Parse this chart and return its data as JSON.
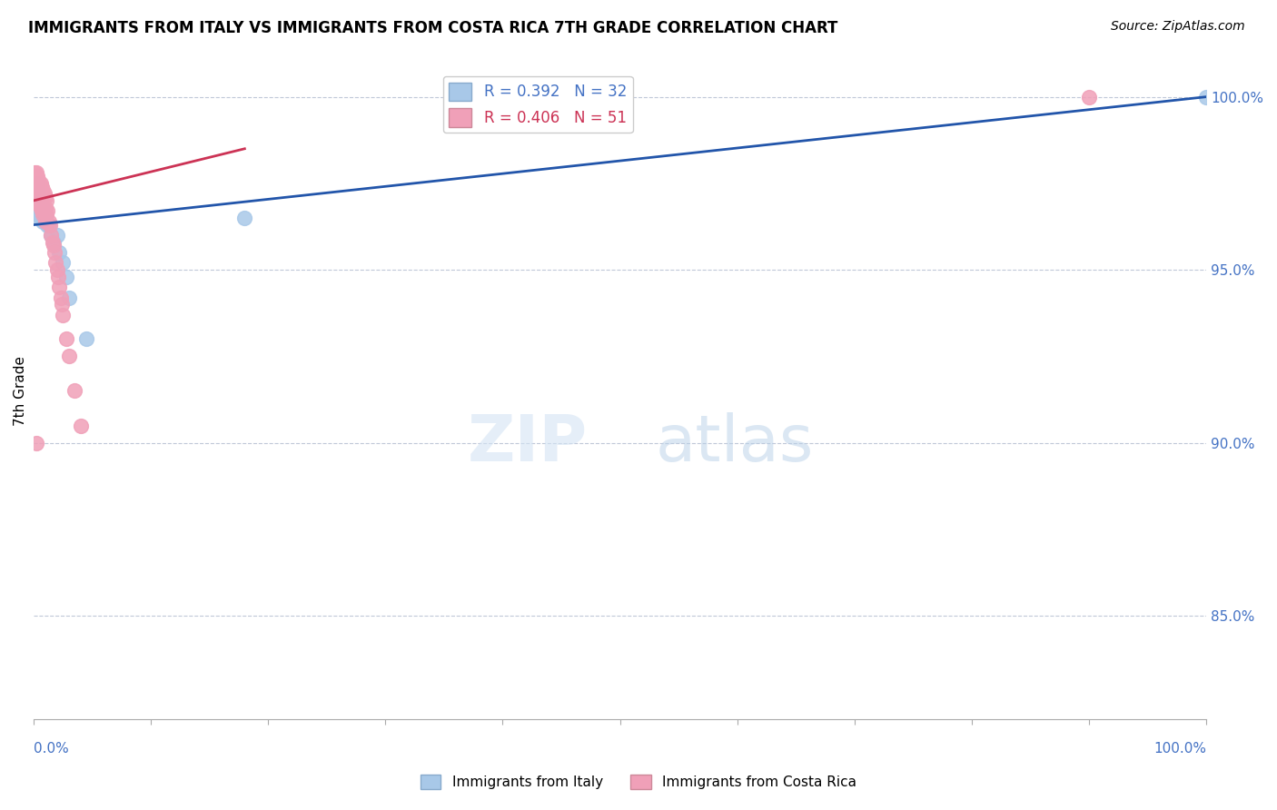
{
  "title": "IMMIGRANTS FROM ITALY VS IMMIGRANTS FROM COSTA RICA 7TH GRADE CORRELATION CHART",
  "source": "Source: ZipAtlas.com",
  "ylabel": "7th Grade",
  "ylabel_right_ticks": [
    "100.0%",
    "95.0%",
    "90.0%",
    "85.0%"
  ],
  "ylabel_right_values": [
    1.0,
    0.95,
    0.9,
    0.85
  ],
  "legend_italy": "R = 0.392   N = 32",
  "legend_costa_rica": "R = 0.406   N = 51",
  "italy_color": "#a8c8e8",
  "costa_rica_color": "#f0a0b8",
  "italy_line_color": "#2255aa",
  "costa_rica_line_color": "#cc3355",
  "xlim": [
    0.0,
    1.0
  ],
  "ylim": [
    0.82,
    1.01
  ],
  "italy_x": [
    0.001,
    0.001,
    0.002,
    0.002,
    0.002,
    0.003,
    0.003,
    0.003,
    0.004,
    0.004,
    0.004,
    0.005,
    0.005,
    0.006,
    0.006,
    0.007,
    0.008,
    0.008,
    0.009,
    0.01,
    0.012,
    0.013,
    0.015,
    0.017,
    0.02,
    0.022,
    0.025,
    0.028,
    0.03,
    0.045,
    0.18,
    1.0
  ],
  "italy_y": [
    0.971,
    0.968,
    0.975,
    0.972,
    0.968,
    0.973,
    0.97,
    0.967,
    0.972,
    0.97,
    0.966,
    0.97,
    0.965,
    0.97,
    0.965,
    0.967,
    0.968,
    0.964,
    0.966,
    0.965,
    0.963,
    0.963,
    0.96,
    0.958,
    0.96,
    0.955,
    0.952,
    0.948,
    0.942,
    0.93,
    0.965,
    1.0
  ],
  "costa_rica_x": [
    0.001,
    0.001,
    0.001,
    0.002,
    0.002,
    0.002,
    0.003,
    0.003,
    0.003,
    0.004,
    0.004,
    0.004,
    0.005,
    0.005,
    0.005,
    0.006,
    0.006,
    0.006,
    0.007,
    0.007,
    0.007,
    0.008,
    0.008,
    0.008,
    0.009,
    0.009,
    0.01,
    0.01,
    0.01,
    0.011,
    0.011,
    0.012,
    0.013,
    0.014,
    0.015,
    0.016,
    0.017,
    0.018,
    0.019,
    0.02,
    0.021,
    0.022,
    0.023,
    0.024,
    0.025,
    0.028,
    0.03,
    0.035,
    0.04,
    0.002,
    0.9
  ],
  "costa_rica_y": [
    0.978,
    0.975,
    0.972,
    0.978,
    0.975,
    0.972,
    0.977,
    0.974,
    0.971,
    0.976,
    0.973,
    0.97,
    0.975,
    0.972,
    0.969,
    0.975,
    0.972,
    0.968,
    0.974,
    0.971,
    0.967,
    0.973,
    0.97,
    0.966,
    0.972,
    0.968,
    0.971,
    0.968,
    0.964,
    0.97,
    0.966,
    0.967,
    0.964,
    0.963,
    0.96,
    0.958,
    0.957,
    0.955,
    0.952,
    0.95,
    0.948,
    0.945,
    0.942,
    0.94,
    0.937,
    0.93,
    0.925,
    0.915,
    0.905,
    0.9,
    1.0
  ]
}
